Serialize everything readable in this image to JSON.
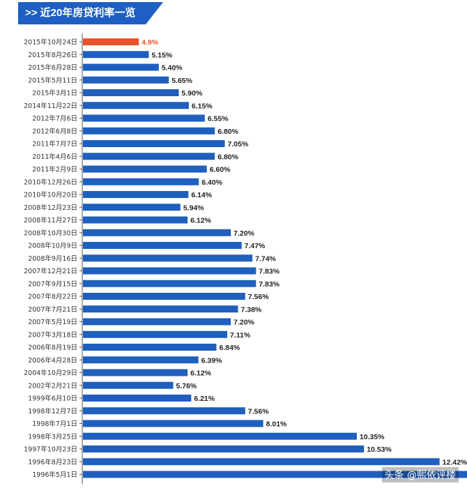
{
  "header": {
    "title": ">> 近20年房贷利率一览"
  },
  "watermark": "头条 @熙依评楼",
  "colors": {
    "bar": "#1f5fbe",
    "highlight": "#e8542a",
    "axis": "#555555",
    "banner": "#1d5fc2"
  },
  "chart_data": {
    "type": "bar",
    "orientation": "horizontal",
    "title": "",
    "xlabel": "",
    "ylabel": "",
    "highlight_index": 0,
    "xlim": [
      4.2,
      12.6
    ],
    "categories": [
      "2015年10月24日",
      "2015年8月26日",
      "2015年6月28日",
      "2015年5月11日",
      "2015年3月1日",
      "2014年11月22日",
      "2012年7月6日",
      "2012年6月8日",
      "2011年7月7日",
      "2011年4月6日",
      "2011年2月9日",
      "2010年12月26日",
      "2010年10月20日",
      "2008年12月23日",
      "2008年11月27日",
      "2008年10月30日",
      "2008年10月9日",
      "2008年9月16日",
      "2007年12月21日",
      "2007年9月15日",
      "2007年8月22日",
      "2007年7月21日",
      "2007年5月19日",
      "2007年3月18日",
      "2006年8月19日",
      "2006年4月28日",
      "2004年10月29日",
      "2002年2月21日",
      "1999年6月10日",
      "1998年12月7日",
      "1998年7月1日",
      "1998年3月25日",
      "1997年10月23日",
      "1996年8月23日",
      "1996年5月1日"
    ],
    "values": [
      4.9,
      5.15,
      5.4,
      5.65,
      5.9,
      6.15,
      6.55,
      6.8,
      7.05,
      6.8,
      6.6,
      6.4,
      6.14,
      5.94,
      6.12,
      7.2,
      7.47,
      7.74,
      7.83,
      7.83,
      7.56,
      7.38,
      7.2,
      7.11,
      6.84,
      6.39,
      6.12,
      5.76,
      6.21,
      7.56,
      8.01,
      10.35,
      10.53,
      12.42,
      null
    ],
    "labels": [
      "4.9%",
      "5.15%",
      "5.40%",
      "5.65%",
      "5.90%",
      "6.15%",
      "6.55%",
      "6.80%",
      "7.05%",
      "6.80%",
      "6.60%",
      "6.40%",
      "6.14%",
      "5.94%",
      "6.12%",
      "7.20%",
      "7.47%",
      "7.74%",
      "7.83%",
      "7.83%",
      "7.56%",
      "7.38%",
      "7.20%",
      "7.11%",
      "6.84%",
      "6.39%",
      "6.12%",
      "5.76%",
      "6.21%",
      "7.56%",
      "8.01%",
      "10.35%",
      "10.53%",
      "12.42%",
      ""
    ]
  }
}
